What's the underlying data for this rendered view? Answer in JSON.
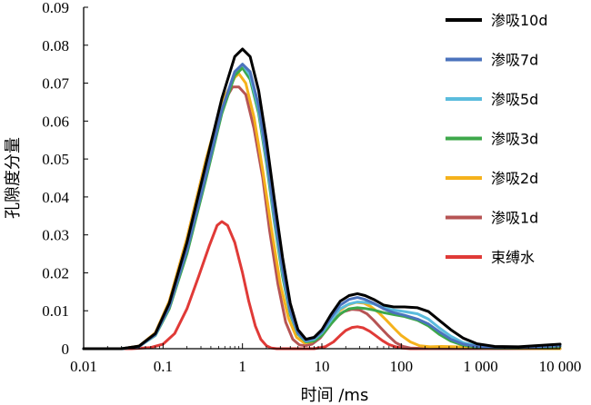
{
  "chart_data": {
    "type": "line",
    "title": "",
    "xlabel": "时间 /ms",
    "ylabel": "孔隙度分量",
    "xscale": "log",
    "xlim": [
      0.01,
      10000
    ],
    "ylim": [
      0,
      0.09
    ],
    "x_ticks": [
      "0.01",
      "0.1",
      "1",
      "10",
      "100",
      "1 000",
      "10 000"
    ],
    "y_ticks": [
      "0",
      "0.01",
      "0.02",
      "0.03",
      "0.04",
      "0.05",
      "0.06",
      "0.07",
      "0.08",
      "0.09"
    ],
    "grid": false,
    "legend_position": "top-right",
    "series": [
      {
        "name": "渗吸10d",
        "color": "#000000",
        "x": [
          0.01,
          0.03,
          0.05,
          0.08,
          0.12,
          0.2,
          0.35,
          0.55,
          0.8,
          1.0,
          1.25,
          1.6,
          2.0,
          2.5,
          3.2,
          4.0,
          5.0,
          6.3,
          8.0,
          10,
          13,
          17,
          22,
          28,
          35,
          45,
          60,
          80,
          110,
          160,
          220,
          300,
          420,
          600,
          900,
          1500,
          3000,
          10000
        ],
        "y": [
          0,
          0,
          0.0007,
          0.004,
          0.012,
          0.028,
          0.049,
          0.066,
          0.077,
          0.079,
          0.077,
          0.068,
          0.055,
          0.04,
          0.024,
          0.012,
          0.005,
          0.0025,
          0.003,
          0.005,
          0.009,
          0.0125,
          0.014,
          0.0145,
          0.014,
          0.013,
          0.0115,
          0.011,
          0.011,
          0.0108,
          0.0098,
          0.0075,
          0.005,
          0.0028,
          0.0013,
          0.0006,
          0.0005,
          0.0012
        ]
      },
      {
        "name": "渗吸7d",
        "color": "#4b73bd",
        "x": [
          0.01,
          0.03,
          0.05,
          0.08,
          0.12,
          0.2,
          0.35,
          0.55,
          0.8,
          1.0,
          1.25,
          1.6,
          2.0,
          2.5,
          3.2,
          4.0,
          5.0,
          6.3,
          8.0,
          10,
          13,
          17,
          22,
          28,
          35,
          45,
          60,
          80,
          110,
          160,
          220,
          300,
          420,
          600,
          900,
          1500,
          3000,
          10000
        ],
        "y": [
          0,
          0,
          0.0006,
          0.0037,
          0.011,
          0.026,
          0.046,
          0.063,
          0.073,
          0.075,
          0.073,
          0.064,
          0.051,
          0.036,
          0.021,
          0.01,
          0.0042,
          0.0022,
          0.0028,
          0.0045,
          0.0082,
          0.0115,
          0.013,
          0.0135,
          0.013,
          0.012,
          0.0105,
          0.0095,
          0.0088,
          0.0078,
          0.0065,
          0.0045,
          0.0025,
          0.0012,
          0.0006,
          0.0003,
          0.0003,
          0.0008
        ]
      },
      {
        "name": "渗吸5d",
        "color": "#5bbcdd",
        "x": [
          0.01,
          0.03,
          0.05,
          0.08,
          0.12,
          0.2,
          0.35,
          0.55,
          0.8,
          1.0,
          1.25,
          1.6,
          2.0,
          2.5,
          3.2,
          4.0,
          5.0,
          6.3,
          8.0,
          10,
          13,
          17,
          22,
          28,
          35,
          45,
          60,
          80,
          110,
          160,
          220,
          300,
          420,
          600,
          900,
          1500,
          3000,
          10000
        ],
        "y": [
          0,
          0,
          0.0006,
          0.0036,
          0.011,
          0.026,
          0.046,
          0.063,
          0.073,
          0.075,
          0.072,
          0.063,
          0.05,
          0.035,
          0.02,
          0.0095,
          0.004,
          0.002,
          0.0025,
          0.0042,
          0.0075,
          0.0105,
          0.0118,
          0.0123,
          0.0122,
          0.0118,
          0.0108,
          0.0102,
          0.0098,
          0.0092,
          0.0078,
          0.0055,
          0.0033,
          0.0016,
          0.0008,
          0.0004,
          0.0004,
          0.001
        ]
      },
      {
        "name": "渗吸3d",
        "color": "#3da84a",
        "x": [
          0.01,
          0.03,
          0.05,
          0.08,
          0.12,
          0.2,
          0.35,
          0.55,
          0.8,
          1.0,
          1.25,
          1.6,
          2.0,
          2.5,
          3.2,
          4.0,
          5.0,
          6.3,
          8.0,
          10,
          13,
          17,
          22,
          28,
          35,
          45,
          60,
          80,
          110,
          160,
          220,
          300,
          420,
          600,
          900,
          1500,
          3000,
          10000
        ],
        "y": [
          0,
          0,
          0.0006,
          0.0035,
          0.0105,
          0.025,
          0.045,
          0.062,
          0.072,
          0.074,
          0.071,
          0.062,
          0.049,
          0.034,
          0.019,
          0.009,
          0.0038,
          0.0018,
          0.002,
          0.0035,
          0.0065,
          0.0092,
          0.0105,
          0.0108,
          0.0106,
          0.0102,
          0.0095,
          0.009,
          0.0085,
          0.0075,
          0.006,
          0.0038,
          0.002,
          0.0009,
          0.0004,
          0.0002,
          0.0002,
          0.0006
        ]
      },
      {
        "name": "渗吸2d",
        "color": "#f5b21c",
        "x": [
          0.01,
          0.03,
          0.05,
          0.08,
          0.12,
          0.2,
          0.35,
          0.55,
          0.8,
          0.9,
          1.1,
          1.4,
          1.8,
          2.3,
          3.0,
          3.8,
          4.8,
          6.0,
          7.5,
          9.5,
          12,
          16,
          21,
          27,
          34,
          42,
          52,
          65,
          80,
          100,
          130,
          170,
          230,
          320,
          500,
          1000,
          3000,
          10000
        ],
        "y": [
          0,
          0,
          0.0007,
          0.0042,
          0.0125,
          0.029,
          0.05,
          0.065,
          0.0715,
          0.0725,
          0.07,
          0.061,
          0.047,
          0.032,
          0.017,
          0.008,
          0.003,
          0.0015,
          0.0018,
          0.0035,
          0.0065,
          0.0098,
          0.0115,
          0.0122,
          0.012,
          0.011,
          0.0095,
          0.0075,
          0.0055,
          0.0035,
          0.0018,
          0.0008,
          0.0005,
          0.0006,
          0.0005,
          0.0002,
          0.0001,
          0
        ]
      },
      {
        "name": "渗吸1d",
        "color": "#b65454",
        "x": [
          0.01,
          0.03,
          0.05,
          0.08,
          0.12,
          0.2,
          0.35,
          0.55,
          0.75,
          0.9,
          1.1,
          1.4,
          1.8,
          2.2,
          2.8,
          3.5,
          4.3,
          5.2,
          6.2,
          7.5,
          9.5,
          12,
          15,
          19,
          24,
          30,
          37,
          45,
          55,
          68,
          85,
          105,
          130,
          170,
          250,
          500,
          2000,
          10000
        ],
        "y": [
          0,
          0,
          0.0007,
          0.0042,
          0.0125,
          0.029,
          0.05,
          0.064,
          0.069,
          0.069,
          0.067,
          0.058,
          0.045,
          0.031,
          0.017,
          0.007,
          0.0025,
          0.001,
          0.0008,
          0.0012,
          0.0028,
          0.0055,
          0.0082,
          0.0098,
          0.0104,
          0.0102,
          0.0092,
          0.0075,
          0.0055,
          0.0035,
          0.0016,
          0.0006,
          0.0002,
          0.0001,
          0,
          0,
          0,
          0
        ]
      },
      {
        "name": "束缚水",
        "color": "#e03a37",
        "x": [
          0.01,
          0.04,
          0.07,
          0.1,
          0.14,
          0.2,
          0.28,
          0.38,
          0.48,
          0.55,
          0.65,
          0.8,
          1.0,
          1.2,
          1.45,
          1.7,
          2.0,
          2.3,
          2.7,
          3.2,
          5,
          8,
          11,
          14,
          17,
          20,
          24,
          28,
          33,
          40,
          48,
          58,
          70,
          85,
          100,
          130,
          200,
          1000,
          10000
        ],
        "y": [
          0,
          0,
          0.0003,
          0.0012,
          0.004,
          0.0105,
          0.019,
          0.027,
          0.0325,
          0.0335,
          0.0325,
          0.028,
          0.02,
          0.0125,
          0.006,
          0.0025,
          0.0008,
          0.0002,
          0,
          0,
          0,
          0,
          0.0005,
          0.0018,
          0.0035,
          0.0048,
          0.0056,
          0.0058,
          0.0055,
          0.0046,
          0.0034,
          0.0021,
          0.0011,
          0.0005,
          0.0002,
          0,
          0,
          0,
          0
        ]
      }
    ]
  }
}
